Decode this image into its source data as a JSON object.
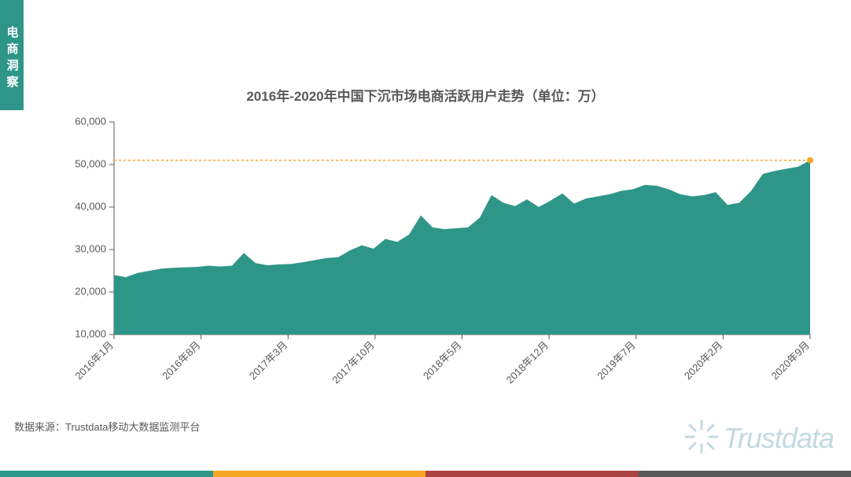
{
  "sidebar": {
    "label": "电商洞察"
  },
  "chart": {
    "type": "area",
    "title": "2016年-2020年中国下沉市场电商活跃用户走势（单位：万）",
    "fill_color": "#2e9688",
    "stroke_color": "#2e9688",
    "title_color": "#595959",
    "label_color": "#595959",
    "background_color": "#ffffff",
    "reference_line_color": "#f5a623",
    "reference_value": 51000,
    "ylim": [
      10000,
      60000
    ],
    "ytick_step": 10000,
    "ytick_labels": [
      "10,000",
      "20,000",
      "30,000",
      "40,000",
      "50,000",
      "60,000"
    ],
    "x_labels": [
      "2016年1月",
      "2016年8月",
      "2017年3月",
      "2017年10月",
      "2018年5月",
      "2018年12月",
      "2019年7月",
      "2020年2月",
      "2020年9月"
    ],
    "x_label_rotation": -45,
    "title_fontsize": 17,
    "tick_fontsize": 13,
    "values": [
      24000,
      23500,
      24500,
      25000,
      25500,
      25700,
      25800,
      25900,
      26200,
      26000,
      26200,
      29200,
      26800,
      26300,
      26500,
      26600,
      27000,
      27500,
      28000,
      28200,
      29800,
      31000,
      30200,
      32500,
      31800,
      33500,
      38000,
      35200,
      34800,
      35000,
      35200,
      37500,
      42800,
      41000,
      40200,
      41800,
      40000,
      41500,
      43200,
      40800,
      42000,
      42500,
      43000,
      43800,
      44200,
      45200,
      45000,
      44200,
      43000,
      42500,
      42800,
      43500,
      40500,
      41000,
      43800,
      47800,
      48500,
      49000,
      49500,
      51000
    ]
  },
  "source": {
    "label": "数据来源：Trustdata移动大数据监测平台"
  },
  "watermark": {
    "text": "Trustdata"
  },
  "bottom_bar_colors": [
    "#2e9688",
    "#f5a623",
    "#a94442",
    "#595959"
  ]
}
